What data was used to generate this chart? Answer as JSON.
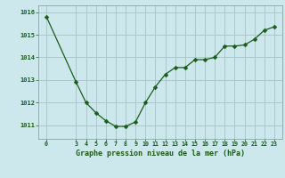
{
  "x": [
    0,
    3,
    4,
    5,
    6,
    7,
    8,
    9,
    10,
    11,
    12,
    13,
    14,
    15,
    16,
    17,
    18,
    19,
    20,
    21,
    22,
    23
  ],
  "y": [
    1015.8,
    1012.9,
    1012.0,
    1011.55,
    1011.2,
    1010.95,
    1010.95,
    1011.15,
    1012.0,
    1012.7,
    1013.25,
    1013.55,
    1013.55,
    1013.9,
    1013.9,
    1014.0,
    1014.5,
    1014.5,
    1014.55,
    1014.8,
    1015.2,
    1015.35
  ],
  "line_color": "#1a5c1a",
  "marker_color": "#1a5c1a",
  "bg_color": "#cce8ec",
  "grid_color": "#aac8cc",
  "xlabel": "Graphe pression niveau de la mer (hPa)",
  "xlabel_color": "#1a5c1a",
  "tick_color": "#1a5c1a",
  "xticks": [
    0,
    3,
    4,
    5,
    6,
    7,
    8,
    9,
    10,
    11,
    12,
    13,
    14,
    15,
    16,
    17,
    18,
    19,
    20,
    21,
    22,
    23
  ],
  "yticks": [
    1011,
    1012,
    1013,
    1014,
    1015,
    1016
  ],
  "ylim": [
    1010.4,
    1016.3
  ],
  "xlim": [
    -0.8,
    23.8
  ]
}
